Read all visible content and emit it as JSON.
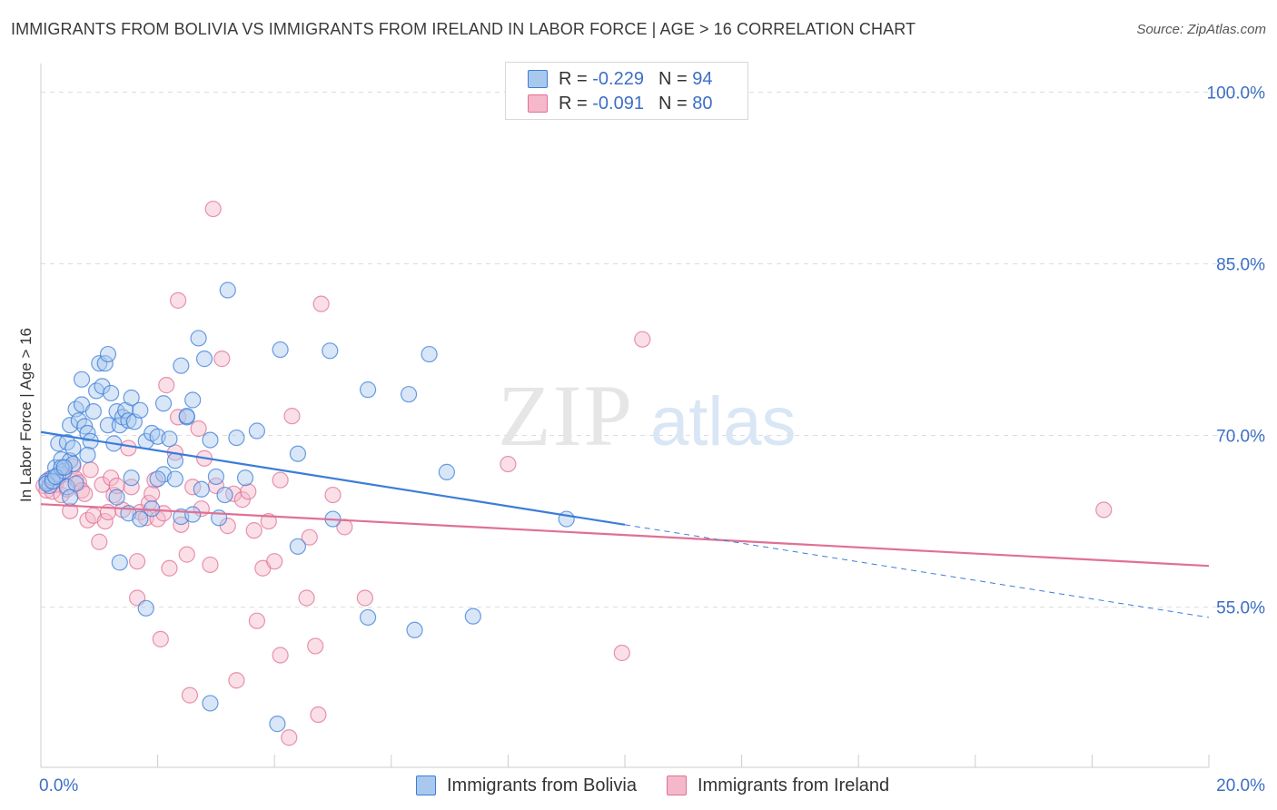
{
  "header": {
    "title": "IMMIGRANTS FROM BOLIVIA VS IMMIGRANTS FROM IRELAND IN LABOR FORCE | AGE > 16 CORRELATION CHART",
    "source": "Source: ZipAtlas.com"
  },
  "watermark": {
    "zip": "ZIP",
    "atlas": "atlas"
  },
  "legend": {
    "bolivia": {
      "r_label": "R =",
      "r_value": "-0.229",
      "n_label": "N =",
      "n_value": "94"
    },
    "ireland": {
      "r_label": "R =",
      "r_value": "-0.091",
      "n_label": "N =",
      "n_value": "80"
    }
  },
  "bottom_legend": {
    "bolivia": "Immigrants from Bolivia",
    "ireland": "Immigrants from Ireland"
  },
  "colors": {
    "bolivia": "#3b7dd8",
    "bolivia_fill": "#a9c8ee",
    "ireland": "#e07094",
    "ireland_fill": "#f4b8ca",
    "axis_label": "#3d6fc6",
    "grid": "#dddddd"
  },
  "chart_data": {
    "type": "scatter",
    "title": "IMMIGRANTS FROM BOLIVIA VS IMMIGRANTS FROM IRELAND IN LABOR FORCE | AGE > 16 CORRELATION CHART",
    "xlabel": "",
    "ylabel": "In Labor Force | Age > 16",
    "xlim": [
      0,
      20
    ],
    "ylim": [
      41,
      102.5
    ],
    "x_tick_labels": [
      "0.0%",
      "20.0%"
    ],
    "y_ticks": [
      55,
      70,
      85,
      100
    ],
    "y_tick_labels": [
      "55.0%",
      "70.0%",
      "85.0%",
      "100.0%"
    ],
    "grid": true,
    "series": [
      {
        "name": "Immigrants from Bolivia",
        "key": "bolivia",
        "r": -0.229,
        "n": 94,
        "trend": {
          "x0": 0,
          "y0": 70.3,
          "x1": 10,
          "y1": 62.2,
          "dashed_to_x": 20,
          "dashed_to_y": 54.1
        },
        "points": [
          [
            0.1,
            66.0
          ],
          [
            0.15,
            65.6
          ],
          [
            0.2,
            66.3
          ],
          [
            0.25,
            67.2
          ],
          [
            0.3,
            66.6
          ],
          [
            0.35,
            67.9
          ],
          [
            0.4,
            66.9
          ],
          [
            0.45,
            65.5
          ],
          [
            0.5,
            67.8
          ],
          [
            0.55,
            67.5
          ],
          [
            0.3,
            69.3
          ],
          [
            0.45,
            69.4
          ],
          [
            0.5,
            70.9
          ],
          [
            0.55,
            68.9
          ],
          [
            0.6,
            72.3
          ],
          [
            0.65,
            71.3
          ],
          [
            0.7,
            72.7
          ],
          [
            0.75,
            70.8
          ],
          [
            0.8,
            70.2
          ],
          [
            0.85,
            69.5
          ],
          [
            0.9,
            72.1
          ],
          [
            0.95,
            73.9
          ],
          [
            0.7,
            74.9
          ],
          [
            1.0,
            76.3
          ],
          [
            1.05,
            74.3
          ],
          [
            1.1,
            76.3
          ],
          [
            1.15,
            70.9
          ],
          [
            1.2,
            73.7
          ],
          [
            1.25,
            69.3
          ],
          [
            1.3,
            72.1
          ],
          [
            1.35,
            70.9
          ],
          [
            1.4,
            71.6
          ],
          [
            1.45,
            72.2
          ],
          [
            1.5,
            71.3
          ],
          [
            1.55,
            73.3
          ],
          [
            1.6,
            71.2
          ],
          [
            1.7,
            72.2
          ],
          [
            1.8,
            69.5
          ],
          [
            1.9,
            70.2
          ],
          [
            2.0,
            69.9
          ],
          [
            2.1,
            72.8
          ],
          [
            2.2,
            69.7
          ],
          [
            2.3,
            67.8
          ],
          [
            2.4,
            76.1
          ],
          [
            2.5,
            71.6
          ],
          [
            2.6,
            73.1
          ],
          [
            2.7,
            78.5
          ],
          [
            2.8,
            76.7
          ],
          [
            2.9,
            69.6
          ],
          [
            3.0,
            66.4
          ],
          [
            3.2,
            82.7
          ],
          [
            3.35,
            69.8
          ],
          [
            3.5,
            66.3
          ],
          [
            3.7,
            70.4
          ],
          [
            4.1,
            77.5
          ],
          [
            4.4,
            68.4
          ],
          [
            4.95,
            77.4
          ],
          [
            5.6,
            74.0
          ],
          [
            6.3,
            73.6
          ],
          [
            6.65,
            77.1
          ],
          [
            6.95,
            66.8
          ],
          [
            0.35,
            67.2
          ],
          [
            0.6,
            65.8
          ],
          [
            0.8,
            68.3
          ],
          [
            1.15,
            77.1
          ],
          [
            1.3,
            64.6
          ],
          [
            1.5,
            63.2
          ],
          [
            1.55,
            66.3
          ],
          [
            1.7,
            62.7
          ],
          [
            1.8,
            54.9
          ],
          [
            1.9,
            63.6
          ],
          [
            2.1,
            66.6
          ],
          [
            2.3,
            66.2
          ],
          [
            2.4,
            62.9
          ],
          [
            2.5,
            71.7
          ],
          [
            2.6,
            63.1
          ],
          [
            2.75,
            65.3
          ],
          [
            2.9,
            46.6
          ],
          [
            3.05,
            62.8
          ],
          [
            3.15,
            64.8
          ],
          [
            4.05,
            44.8
          ],
          [
            4.4,
            60.3
          ],
          [
            5.0,
            62.7
          ],
          [
            5.6,
            54.1
          ],
          [
            6.4,
            53.0
          ],
          [
            7.4,
            54.2
          ],
          [
            9.0,
            62.7
          ],
          [
            0.1,
            65.8
          ],
          [
            0.2,
            66.0
          ],
          [
            0.25,
            66.4
          ],
          [
            0.4,
            67.2
          ],
          [
            0.5,
            64.6
          ],
          [
            1.35,
            58.9
          ],
          [
            2.0,
            66.2
          ]
        ]
      },
      {
        "name": "Immigrants from Ireland",
        "key": "ireland",
        "r": -0.091,
        "n": 80,
        "trend": {
          "x0": 0,
          "y0": 64.0,
          "x1": 20,
          "y1": 58.6
        },
        "points": [
          [
            0.05,
            65.6
          ],
          [
            0.1,
            65.2
          ],
          [
            0.15,
            66.2
          ],
          [
            0.2,
            65.1
          ],
          [
            0.25,
            65.7
          ],
          [
            0.3,
            66.4
          ],
          [
            0.35,
            64.8
          ],
          [
            0.4,
            66.9
          ],
          [
            0.45,
            65.3
          ],
          [
            0.5,
            63.4
          ],
          [
            0.55,
            67.3
          ],
          [
            0.6,
            66.2
          ],
          [
            0.65,
            65.9
          ],
          [
            0.7,
            65.2
          ],
          [
            0.75,
            64.9
          ],
          [
            0.8,
            62.6
          ],
          [
            0.85,
            67.0
          ],
          [
            0.9,
            63.0
          ],
          [
            1.0,
            60.7
          ],
          [
            1.05,
            65.7
          ],
          [
            1.1,
            62.5
          ],
          [
            1.15,
            63.3
          ],
          [
            1.2,
            66.3
          ],
          [
            1.25,
            64.8
          ],
          [
            1.3,
            65.6
          ],
          [
            1.4,
            63.5
          ],
          [
            1.5,
            68.9
          ],
          [
            1.55,
            65.5
          ],
          [
            1.65,
            59.0
          ],
          [
            1.7,
            63.3
          ],
          [
            1.8,
            62.8
          ],
          [
            1.85,
            64.1
          ],
          [
            1.9,
            64.9
          ],
          [
            1.95,
            66.1
          ],
          [
            2.0,
            62.7
          ],
          [
            2.1,
            63.2
          ],
          [
            2.15,
            74.4
          ],
          [
            2.2,
            58.4
          ],
          [
            2.3,
            68.5
          ],
          [
            2.35,
            71.6
          ],
          [
            2.4,
            62.2
          ],
          [
            2.5,
            59.6
          ],
          [
            2.6,
            65.5
          ],
          [
            2.7,
            70.6
          ],
          [
            2.75,
            63.6
          ],
          [
            2.8,
            68.0
          ],
          [
            2.9,
            58.7
          ],
          [
            3.0,
            65.6
          ],
          [
            3.1,
            76.7
          ],
          [
            3.2,
            62.1
          ],
          [
            3.3,
            64.9
          ],
          [
            3.45,
            64.4
          ],
          [
            3.55,
            65.1
          ],
          [
            3.65,
            61.7
          ],
          [
            3.8,
            58.4
          ],
          [
            3.9,
            62.5
          ],
          [
            4.0,
            59.0
          ],
          [
            4.1,
            66.1
          ],
          [
            4.3,
            71.7
          ],
          [
            4.6,
            61.1
          ],
          [
            4.8,
            81.5
          ],
          [
            5.0,
            64.8
          ],
          [
            5.2,
            62.0
          ],
          [
            2.35,
            81.8
          ],
          [
            2.95,
            89.8
          ],
          [
            1.65,
            55.8
          ],
          [
            2.05,
            52.2
          ],
          [
            2.55,
            47.3
          ],
          [
            3.35,
            48.6
          ],
          [
            3.7,
            53.8
          ],
          [
            4.1,
            50.8
          ],
          [
            4.25,
            43.6
          ],
          [
            4.55,
            55.8
          ],
          [
            4.7,
            51.6
          ],
          [
            4.75,
            45.6
          ],
          [
            5.55,
            55.8
          ],
          [
            8.0,
            67.5
          ],
          [
            10.3,
            78.4
          ],
          [
            9.95,
            51.0
          ],
          [
            18.2,
            63.5
          ]
        ]
      }
    ]
  }
}
